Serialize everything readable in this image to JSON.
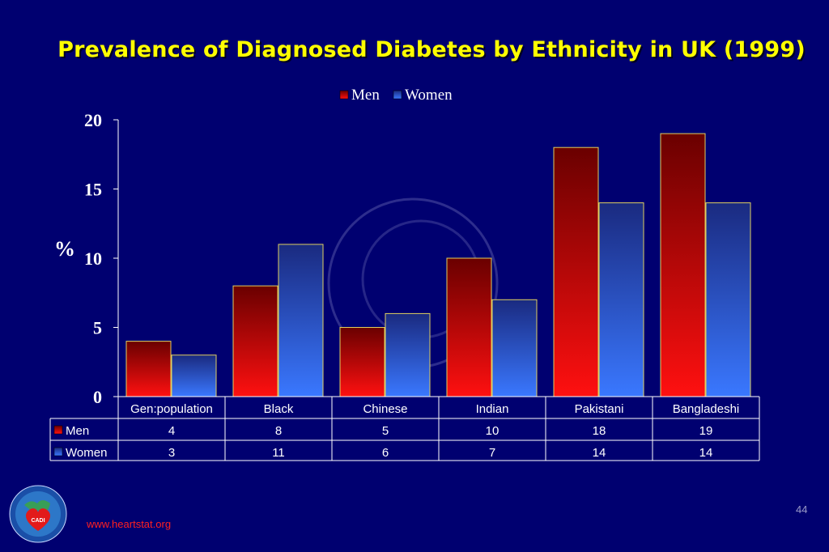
{
  "slide": {
    "title": "Prevalence of Diagnosed Diabetes by Ethnicity in UK (1999)",
    "website": "www.heartstat.org",
    "page_number": "44",
    "logo": {
      "name": "cadi-research-foundation-logo",
      "center_text": "CADI"
    }
  },
  "colors": {
    "background": "#000070",
    "title": "#ffff00",
    "men": "#d40000",
    "women": "#2a5cd8",
    "axis_text": "#ffffff",
    "url": "#ff2020"
  },
  "chart_data": {
    "type": "bar",
    "ylabel": "%",
    "ylim": [
      0,
      20
    ],
    "yticks": [
      "0",
      "5",
      "10",
      "15",
      "20"
    ],
    "categories": [
      "Gen:population",
      "Black",
      "Chinese",
      "Indian",
      "Pakistani",
      "Bangladeshi"
    ],
    "series": [
      {
        "name": "Men",
        "values": [
          4,
          8,
          5,
          10,
          18,
          19
        ],
        "table_values": [
          "4",
          "8",
          "5",
          "10",
          "18",
          "19"
        ]
      },
      {
        "name": "Women",
        "values": [
          3,
          11,
          6,
          7,
          14,
          14
        ],
        "table_values": [
          "3",
          "11",
          "6",
          "7",
          "14",
          "14"
        ]
      }
    ],
    "legend_position": "top-center",
    "data_table": true,
    "grid": false
  }
}
